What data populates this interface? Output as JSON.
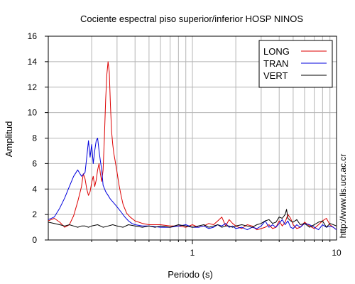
{
  "chart_data": {
    "type": "line",
    "title": "Cociente espectral piso superior/inferior  HOSP NINOS",
    "xlabel": "Periodo (s)",
    "ylabel": "Amplitud",
    "credit": "http://www.lis.ucr.ac.cr",
    "xscale": "log",
    "xlim": [
      0.1,
      10
    ],
    "ylim": [
      0,
      16
    ],
    "yticks": [
      0,
      2,
      4,
      6,
      8,
      10,
      12,
      14,
      16
    ],
    "xtick_labels": [
      {
        "value": 1,
        "label": "1"
      },
      {
        "value": 10,
        "label": "10"
      }
    ],
    "grid": true,
    "legend_position": "top-right",
    "series": [
      {
        "name": "LONG",
        "color": "#dd0000",
        "x": [
          0.1,
          0.11,
          0.12,
          0.13,
          0.14,
          0.15,
          0.16,
          0.17,
          0.175,
          0.18,
          0.185,
          0.19,
          0.195,
          0.2,
          0.205,
          0.21,
          0.215,
          0.22,
          0.225,
          0.23,
          0.235,
          0.24,
          0.245,
          0.25,
          0.255,
          0.26,
          0.265,
          0.27,
          0.275,
          0.28,
          0.285,
          0.29,
          0.3,
          0.31,
          0.32,
          0.33,
          0.35,
          0.37,
          0.4,
          0.45,
          0.5,
          0.6,
          0.7,
          0.8,
          0.9,
          1.0,
          1.1,
          1.2,
          1.3,
          1.4,
          1.5,
          1.6,
          1.7,
          1.8,
          1.9,
          2.0,
          2.2,
          2.4,
          2.6,
          2.8,
          3.0,
          3.2,
          3.4,
          3.6,
          3.8,
          4.0,
          4.2,
          4.4,
          4.6,
          4.8,
          5.0,
          5.3,
          5.6,
          6.0,
          6.5,
          7.0,
          7.5,
          8.0,
          8.5,
          9.0,
          9.5,
          10.0
        ],
        "y": [
          1.5,
          1.7,
          1.4,
          1.0,
          1.2,
          1.9,
          3.0,
          4.2,
          5.2,
          4.8,
          4.0,
          3.5,
          3.8,
          4.5,
          5.0,
          4.2,
          4.7,
          5.5,
          6.0,
          5.2,
          4.6,
          5.5,
          8.0,
          11.0,
          13.0,
          14.0,
          13.2,
          10.5,
          8.5,
          7.5,
          6.8,
          6.3,
          5.3,
          4.3,
          3.5,
          2.8,
          2.1,
          1.8,
          1.5,
          1.3,
          1.2,
          1.2,
          1.1,
          1.1,
          1.0,
          1.2,
          1.0,
          1.1,
          1.3,
          1.2,
          1.5,
          1.8,
          1.1,
          1.6,
          1.3,
          1.1,
          0.9,
          1.2,
          1.1,
          0.8,
          0.9,
          1.0,
          1.2,
          0.9,
          1.0,
          1.5,
          1.1,
          1.4,
          2.0,
          1.7,
          1.2,
          0.9,
          1.0,
          1.4,
          1.1,
          0.9,
          1.2,
          1.5,
          1.7,
          1.2,
          1.0,
          0.8
        ]
      },
      {
        "name": "TRAN",
        "color": "#0000dd",
        "x": [
          0.1,
          0.11,
          0.12,
          0.13,
          0.14,
          0.15,
          0.16,
          0.17,
          0.18,
          0.185,
          0.19,
          0.195,
          0.2,
          0.205,
          0.21,
          0.215,
          0.22,
          0.225,
          0.23,
          0.235,
          0.24,
          0.25,
          0.26,
          0.27,
          0.28,
          0.29,
          0.3,
          0.32,
          0.34,
          0.36,
          0.38,
          0.4,
          0.45,
          0.5,
          0.6,
          0.7,
          0.8,
          0.9,
          1.0,
          1.1,
          1.2,
          1.3,
          1.4,
          1.5,
          1.6,
          1.7,
          1.8,
          1.9,
          2.0,
          2.2,
          2.4,
          2.6,
          2.8,
          3.0,
          3.2,
          3.4,
          3.6,
          3.8,
          4.0,
          4.2,
          4.4,
          4.6,
          4.8,
          5.0,
          5.3,
          5.6,
          6.0,
          6.5,
          7.0,
          7.5,
          8.0,
          8.5,
          9.0,
          9.5,
          10.0
        ],
        "y": [
          1.6,
          1.8,
          2.5,
          3.3,
          4.2,
          5.0,
          5.5,
          5.0,
          5.3,
          6.5,
          7.8,
          6.5,
          7.5,
          6.0,
          7.0,
          7.8,
          8.0,
          7.0,
          6.2,
          5.5,
          4.3,
          3.8,
          3.5,
          3.2,
          3.0,
          2.8,
          2.6,
          2.2,
          1.8,
          1.5,
          1.3,
          1.2,
          1.1,
          1.1,
          1.0,
          1.0,
          1.1,
          1.2,
          1.0,
          1.0,
          1.1,
          0.9,
          1.0,
          1.2,
          1.1,
          1.3,
          1.0,
          1.1,
          0.9,
          1.0,
          0.8,
          1.0,
          0.9,
          1.1,
          1.5,
          1.0,
          1.2,
          1.0,
          1.3,
          1.6,
          1.2,
          1.5,
          1.0,
          0.9,
          1.2,
          1.0,
          1.3,
          1.2,
          1.0,
          0.8,
          1.2,
          1.0,
          1.1,
          1.0,
          0.8
        ]
      },
      {
        "name": "VERT",
        "color": "#000000",
        "x": [
          0.1,
          0.11,
          0.12,
          0.13,
          0.14,
          0.15,
          0.16,
          0.17,
          0.18,
          0.19,
          0.2,
          0.22,
          0.24,
          0.26,
          0.28,
          0.3,
          0.33,
          0.36,
          0.4,
          0.45,
          0.5,
          0.55,
          0.6,
          0.7,
          0.8,
          0.9,
          1.0,
          1.1,
          1.2,
          1.3,
          1.4,
          1.5,
          1.6,
          1.7,
          1.8,
          1.9,
          2.0,
          2.2,
          2.4,
          2.6,
          2.8,
          3.0,
          3.2,
          3.4,
          3.6,
          3.8,
          4.0,
          4.2,
          4.4,
          4.5,
          4.6,
          4.8,
          5.0,
          5.3,
          5.6,
          6.0,
          6.5,
          7.0,
          7.5,
          8.0,
          8.5,
          9.0,
          9.5,
          10.0
        ],
        "y": [
          1.4,
          1.3,
          1.2,
          1.1,
          1.2,
          1.1,
          1.0,
          1.1,
          1.1,
          1.0,
          1.1,
          1.2,
          1.0,
          1.1,
          1.2,
          1.1,
          1.0,
          1.2,
          1.1,
          1.0,
          1.1,
          1.0,
          1.1,
          1.0,
          1.2,
          1.1,
          1.0,
          1.1,
          1.2,
          1.0,
          1.1,
          1.2,
          1.0,
          1.1,
          1.1,
          1.0,
          1.1,
          1.2,
          1.1,
          1.0,
          1.2,
          1.3,
          1.5,
          1.6,
          1.3,
          1.4,
          1.8,
          1.7,
          2.0,
          2.4,
          1.7,
          1.5,
          1.4,
          1.6,
          1.2,
          1.3,
          1.0,
          1.2,
          1.4,
          1.5,
          1.0,
          1.3,
          1.2,
          1.1
        ]
      }
    ]
  }
}
